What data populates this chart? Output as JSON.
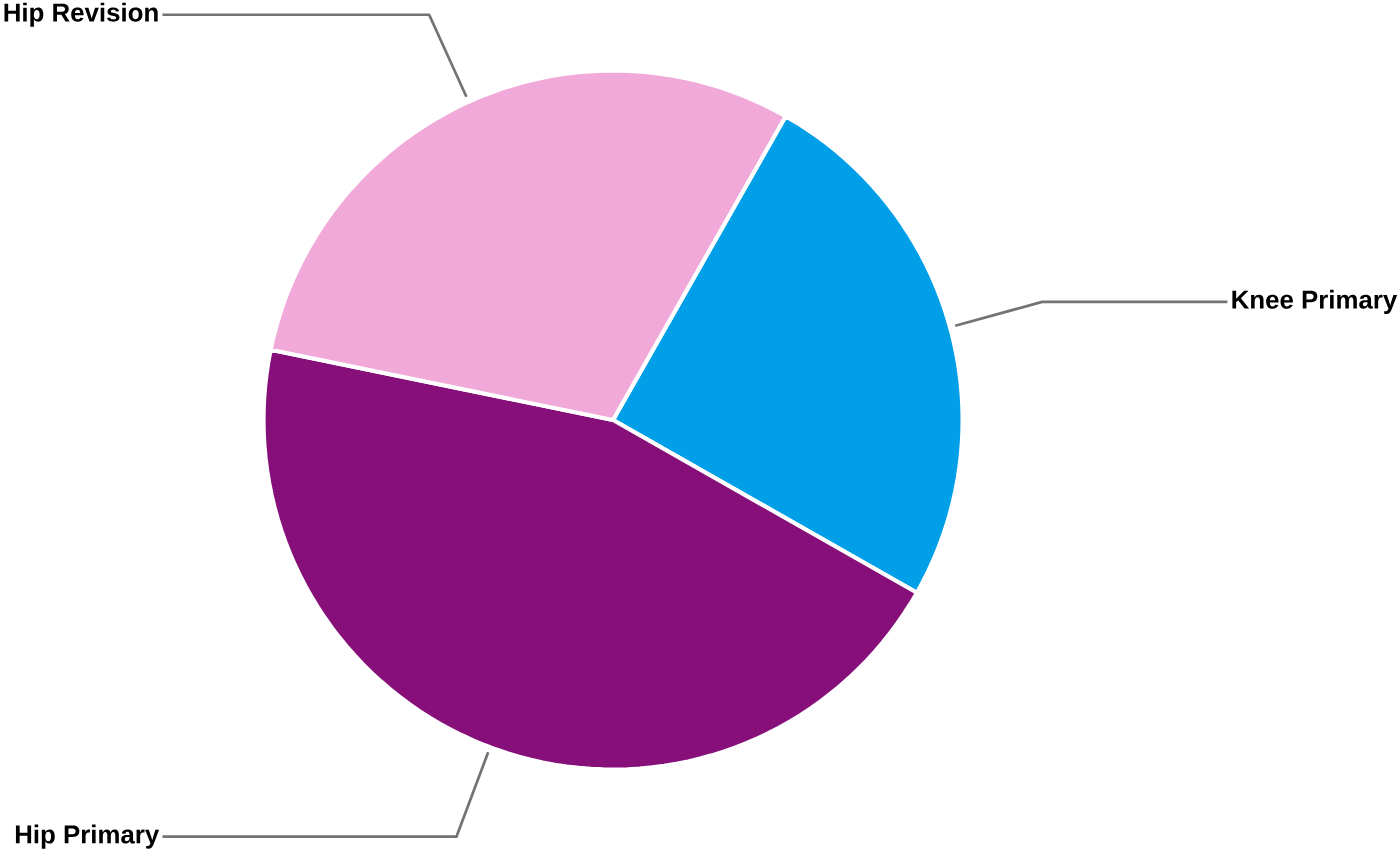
{
  "chart_data": {
    "type": "pie",
    "categories": [
      "Knee Primary",
      "Hip Primary",
      "Hip Revision"
    ],
    "values": [
      25,
      45,
      30
    ],
    "colors": [
      "#009fe8",
      "#870f7a",
      "#f0a9d8"
    ]
  }
}
